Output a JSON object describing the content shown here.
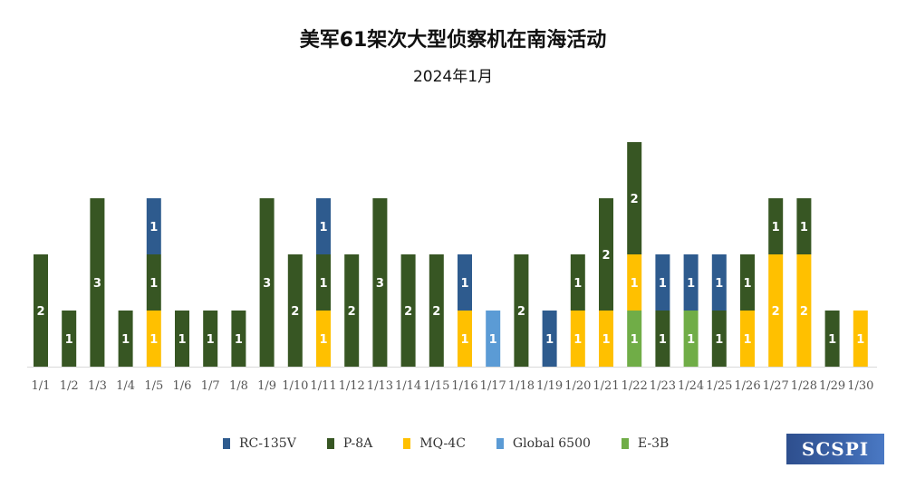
{
  "title": "美军61架次大型侦察机在南海活动",
  "subtitle": "2024年1月",
  "logo_text": "SCSPI",
  "chart_data": {
    "type": "bar",
    "stacked": true,
    "title": "美军61架次大型侦察机在南海活动",
    "subtitle": "2024年1月",
    "categories": [
      "1/1",
      "1/2",
      "1/3",
      "1/4",
      "1/5",
      "1/6",
      "1/7",
      "1/8",
      "1/9",
      "1/10",
      "1/11",
      "1/12",
      "1/13",
      "1/14",
      "1/15",
      "1/16",
      "1/17",
      "1/18",
      "1/19",
      "1/20",
      "1/21",
      "1/22",
      "1/23",
      "1/24",
      "1/25",
      "1/26",
      "1/27",
      "1/28",
      "1/29",
      "1/30"
    ],
    "series": [
      {
        "name": "E-3B",
        "color": "#70ad47",
        "values": [
          0,
          0,
          0,
          0,
          0,
          0,
          0,
          0,
          0,
          0,
          0,
          0,
          0,
          0,
          0,
          0,
          0,
          0,
          0,
          0,
          0,
          1,
          0,
          1,
          0,
          0,
          0,
          0,
          0,
          0
        ]
      },
      {
        "name": "Global 6500",
        "color": "#5b9bd5",
        "values": [
          0,
          0,
          0,
          0,
          0,
          0,
          0,
          0,
          0,
          0,
          0,
          0,
          0,
          0,
          0,
          0,
          1,
          0,
          0,
          0,
          0,
          0,
          0,
          0,
          0,
          0,
          0,
          0,
          0,
          0
        ]
      },
      {
        "name": "MQ-4C",
        "color": "#ffc000",
        "values": [
          0,
          0,
          0,
          0,
          1,
          0,
          0,
          0,
          0,
          0,
          1,
          0,
          0,
          0,
          0,
          1,
          0,
          0,
          0,
          1,
          1,
          1,
          0,
          0,
          0,
          1,
          2,
          2,
          0,
          1
        ]
      },
      {
        "name": "P-8A",
        "color": "#375623",
        "values": [
          2,
          1,
          3,
          1,
          1,
          1,
          1,
          1,
          3,
          2,
          1,
          2,
          3,
          2,
          2,
          0,
          0,
          2,
          0,
          1,
          2,
          2,
          1,
          0,
          1,
          1,
          1,
          1,
          1,
          0
        ]
      },
      {
        "name": "RC-135V",
        "color": "#2e5b8e",
        "values": [
          0,
          0,
          0,
          0,
          1,
          0,
          0,
          0,
          0,
          0,
          1,
          0,
          0,
          0,
          0,
          1,
          0,
          0,
          1,
          0,
          0,
          0,
          1,
          1,
          1,
          0,
          0,
          0,
          0,
          0
        ]
      }
    ],
    "legend_order": [
      "RC-135V",
      "P-8A",
      "MQ-4C",
      "Global 6500",
      "E-3B"
    ],
    "legend_position": "bottom",
    "ylim": [
      0,
      4
    ],
    "grid": false,
    "yaxis_visible": false,
    "data_labels": true
  }
}
